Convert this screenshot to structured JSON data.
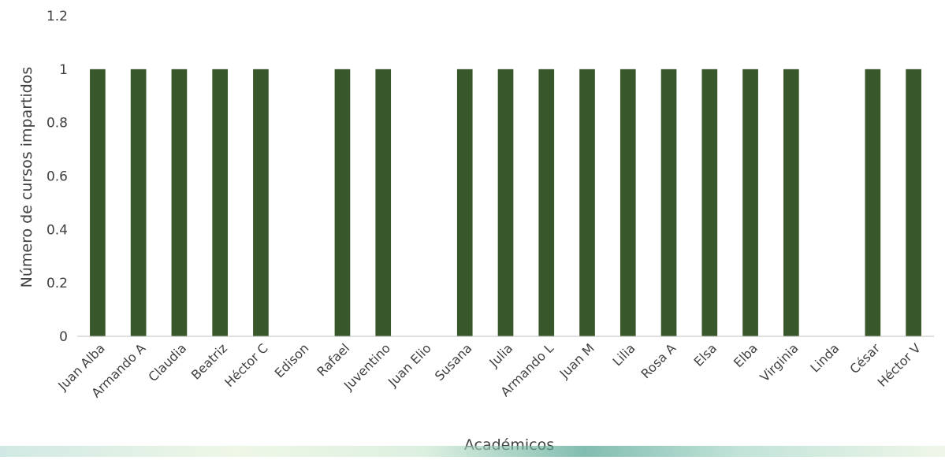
{
  "chart_data": {
    "type": "bar",
    "title": "",
    "xlabel": "Académicos",
    "ylabel": "Número de cursos impartidos",
    "ylim": [
      0,
      1.2
    ],
    "yticks": [
      "0",
      "0.2",
      "0.4",
      "0.6",
      "0.8",
      "1",
      "1.2"
    ],
    "grid": false,
    "legend": "none",
    "bar_color": "#38572a",
    "categories": [
      "Juan Alba",
      "Armando A",
      "Claudia",
      "Beatriz",
      "Héctor C",
      "Edison",
      "Rafael",
      "Juventino",
      "Juan Elio",
      "Susana",
      "Julia",
      "Armando L",
      "Juan M",
      "Lilia",
      "Rosa A",
      "Elsa",
      "Elba",
      "Virginia",
      "Linda",
      "César",
      "Héctor V"
    ],
    "values": [
      1,
      1,
      1,
      1,
      1,
      0,
      1,
      1,
      0,
      1,
      1,
      1,
      1,
      1,
      1,
      1,
      1,
      1,
      0,
      1,
      1
    ]
  }
}
